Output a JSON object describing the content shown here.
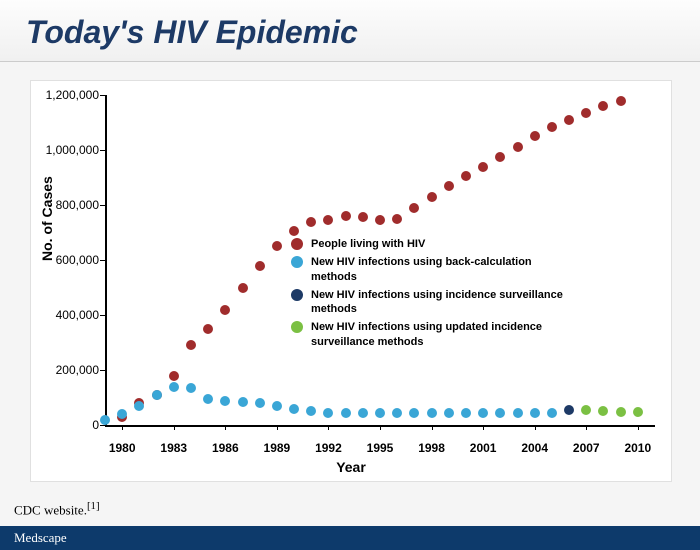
{
  "title": "Today's HIV Epidemic",
  "source": "CDC website.",
  "source_ref": "[1]",
  "footer_brand": "Medscape",
  "chart": {
    "type": "scatter",
    "ylabel": "No. of Cases",
    "xlabel": "Year",
    "ylim": [
      0,
      1200000
    ],
    "ytick_step": 200000,
    "yticks": [
      "0",
      "200,000",
      "400,000",
      "600,000",
      "800,000",
      "1,000,000",
      "1,200,000"
    ],
    "xlim": [
      1979,
      2011
    ],
    "xticks": [
      1980,
      1983,
      1986,
      1989,
      1992,
      1995,
      1998,
      2001,
      2004,
      2007,
      2010
    ],
    "marker_size": 10,
    "background_color": "#ffffff",
    "axis_color": "#000000",
    "series": [
      {
        "name": "People living with HIV",
        "color": "#a02c2c",
        "data": [
          [
            1980,
            30000
          ],
          [
            1981,
            80000
          ],
          [
            1982,
            110000
          ],
          [
            1983,
            180000
          ],
          [
            1984,
            290000
          ],
          [
            1985,
            350000
          ],
          [
            1986,
            420000
          ],
          [
            1987,
            500000
          ],
          [
            1988,
            580000
          ],
          [
            1989,
            650000
          ],
          [
            1990,
            705000
          ],
          [
            1991,
            740000
          ],
          [
            1992,
            745000
          ],
          [
            1993,
            760000
          ],
          [
            1994,
            755000
          ],
          [
            1995,
            745000
          ],
          [
            1996,
            750000
          ],
          [
            1997,
            790000
          ],
          [
            1998,
            830000
          ],
          [
            1999,
            870000
          ],
          [
            2000,
            905000
          ],
          [
            2001,
            940000
          ],
          [
            2002,
            975000
          ],
          [
            2003,
            1010000
          ],
          [
            2004,
            1050000
          ],
          [
            2005,
            1085000
          ],
          [
            2006,
            1110000
          ],
          [
            2007,
            1135000
          ],
          [
            2008,
            1160000
          ],
          [
            2009,
            1180000
          ]
        ]
      },
      {
        "name": "New HIV infections using back-calculation methods",
        "color": "#3aa6d6",
        "data": [
          [
            1979,
            20000
          ],
          [
            1980,
            40000
          ],
          [
            1981,
            70000
          ],
          [
            1982,
            110000
          ],
          [
            1983,
            140000
          ],
          [
            1984,
            135000
          ],
          [
            1985,
            95000
          ],
          [
            1986,
            88000
          ],
          [
            1987,
            85000
          ],
          [
            1988,
            80000
          ],
          [
            1989,
            70000
          ],
          [
            1990,
            60000
          ],
          [
            1991,
            50000
          ],
          [
            1992,
            42000
          ],
          [
            1993,
            42000
          ],
          [
            1994,
            42000
          ],
          [
            1995,
            42000
          ],
          [
            1996,
            42000
          ],
          [
            1997,
            42000
          ],
          [
            1998,
            42000
          ],
          [
            1999,
            42000
          ],
          [
            2000,
            42000
          ],
          [
            2001,
            42000
          ],
          [
            2002,
            42000
          ],
          [
            2003,
            42000
          ],
          [
            2004,
            42000
          ],
          [
            2005,
            42000
          ]
        ]
      },
      {
        "name": "New HIV infections using incidence surveillance methods",
        "color": "#1d3a66",
        "data": [
          [
            2006,
            55000
          ]
        ]
      },
      {
        "name": "New HIV infections using updated incidence surveillance methods",
        "color": "#7bc043",
        "data": [
          [
            2007,
            55000
          ],
          [
            2008,
            50000
          ],
          [
            2009,
            48000
          ],
          [
            2010,
            48000
          ]
        ]
      }
    ]
  }
}
